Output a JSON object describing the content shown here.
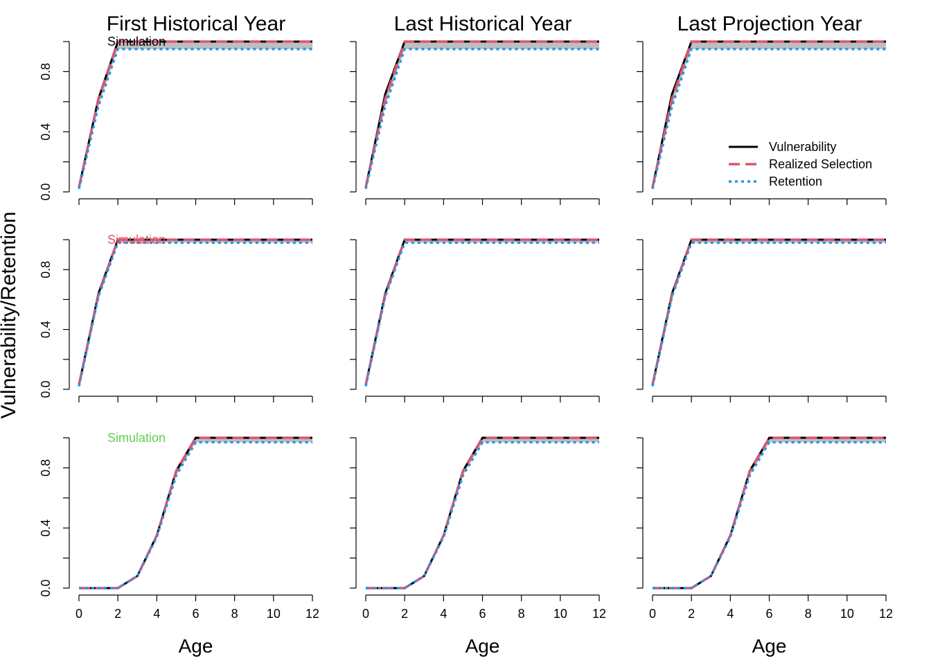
{
  "figure": {
    "ylabel": "Vulnerability/Retention",
    "xlabel": "Age",
    "column_titles": [
      "First Historical Year",
      "Last Historical Year",
      "Last Projection Year"
    ],
    "row_labels": [
      "Simulation",
      "Simulation",
      "Simulation"
    ],
    "row_label_colors": [
      "#000000",
      "#DF536B",
      "#61D04F"
    ],
    "series_colors": {
      "vulnerability": "#000000",
      "realized_selection": "#DF536B",
      "retention": "#2297E6",
      "band": "#BEBEBE"
    },
    "legend": {
      "entries": [
        "Vulnerability",
        "Realized Selection",
        "Retention"
      ],
      "placement": "right"
    }
  },
  "chart_data": [
    {
      "type": "line",
      "row": 1,
      "col": 1,
      "title": "First Historical Year",
      "label": "Simulation",
      "xlabel": "",
      "ylabel": "",
      "xlim": [
        0,
        12
      ],
      "ylim": [
        0,
        1
      ],
      "x_ticks": [],
      "y_ticks": [
        "0.0",
        "0.4",
        "0.8"
      ],
      "x": [
        0,
        1,
        2,
        3,
        4,
        5,
        6,
        7,
        8,
        9,
        10,
        11,
        12
      ],
      "series": [
        {
          "name": "Vulnerability",
          "values": [
            0.03,
            0.62,
            1.0,
            1.0,
            1.0,
            1.0,
            1.0,
            1.0,
            1.0,
            1.0,
            1.0,
            1.0,
            1.0
          ]
        },
        {
          "name": "Realized Selection",
          "values": [
            0.03,
            0.62,
            1.0,
            1.0,
            1.0,
            1.0,
            1.0,
            1.0,
            1.0,
            1.0,
            1.0,
            1.0,
            1.0
          ]
        },
        {
          "name": "Retention",
          "values": [
            0.02,
            0.57,
            0.95,
            0.95,
            0.95,
            0.95,
            0.95,
            0.95,
            0.95,
            0.95,
            0.95,
            0.95,
            0.95
          ]
        }
      ]
    },
    {
      "type": "line",
      "row": 1,
      "col": 2,
      "title": "Last Historical Year",
      "label": "",
      "xlabel": "",
      "ylabel": "",
      "xlim": [
        0,
        12
      ],
      "ylim": [
        0,
        1
      ],
      "x_ticks": [],
      "y_ticks": [],
      "x": [
        0,
        1,
        2,
        3,
        4,
        5,
        6,
        7,
        8,
        9,
        10,
        11,
        12
      ],
      "series": [
        {
          "name": "Vulnerability",
          "values": [
            0.03,
            0.65,
            1.0,
            1.0,
            1.0,
            1.0,
            1.0,
            1.0,
            1.0,
            1.0,
            1.0,
            1.0,
            1.0
          ]
        },
        {
          "name": "Realized Selection",
          "values": [
            0.03,
            0.62,
            1.0,
            1.0,
            1.0,
            1.0,
            1.0,
            1.0,
            1.0,
            1.0,
            1.0,
            1.0,
            1.0
          ]
        },
        {
          "name": "Retention",
          "values": [
            0.02,
            0.57,
            0.95,
            0.95,
            0.95,
            0.95,
            0.95,
            0.95,
            0.95,
            0.95,
            0.95,
            0.95,
            0.95
          ]
        }
      ]
    },
    {
      "type": "line",
      "row": 1,
      "col": 3,
      "title": "Last Projection Year",
      "label": "",
      "xlabel": "",
      "ylabel": "",
      "xlim": [
        0,
        12
      ],
      "ylim": [
        0,
        1
      ],
      "x_ticks": [],
      "y_ticks": [],
      "x": [
        0,
        1,
        2,
        3,
        4,
        5,
        6,
        7,
        8,
        9,
        10,
        11,
        12
      ],
      "series": [
        {
          "name": "Vulnerability",
          "values": [
            0.03,
            0.65,
            1.0,
            1.0,
            1.0,
            1.0,
            1.0,
            1.0,
            1.0,
            1.0,
            1.0,
            1.0,
            1.0
          ]
        },
        {
          "name": "Realized Selection",
          "values": [
            0.03,
            0.62,
            1.0,
            1.0,
            1.0,
            1.0,
            1.0,
            1.0,
            1.0,
            1.0,
            1.0,
            1.0,
            1.0
          ]
        },
        {
          "name": "Retention",
          "values": [
            0.02,
            0.57,
            0.95,
            0.95,
            0.95,
            0.95,
            0.95,
            0.95,
            0.95,
            0.95,
            0.95,
            0.95,
            0.95
          ]
        }
      ],
      "legend": [
        "Vulnerability",
        "Realized Selection",
        "Retention"
      ]
    },
    {
      "type": "line",
      "row": 2,
      "col": 1,
      "title": "",
      "label": "Simulation",
      "xlabel": "",
      "ylabel": "",
      "xlim": [
        0,
        12
      ],
      "ylim": [
        0,
        1
      ],
      "x_ticks": [],
      "y_ticks": [
        "0.0",
        "0.4",
        "0.8"
      ],
      "x": [
        0,
        1,
        2,
        3,
        4,
        5,
        6,
        7,
        8,
        9,
        10,
        11,
        12
      ],
      "series": [
        {
          "name": "Vulnerability",
          "values": [
            0.03,
            0.64,
            1.0,
            1.0,
            1.0,
            1.0,
            1.0,
            1.0,
            1.0,
            1.0,
            1.0,
            1.0,
            1.0
          ]
        },
        {
          "name": "Realized Selection",
          "values": [
            0.03,
            0.63,
            1.0,
            1.0,
            1.0,
            1.0,
            1.0,
            1.0,
            1.0,
            1.0,
            1.0,
            1.0,
            1.0
          ]
        },
        {
          "name": "Retention",
          "values": [
            0.02,
            0.62,
            0.98,
            0.98,
            0.98,
            0.98,
            0.98,
            0.98,
            0.98,
            0.98,
            0.98,
            0.98,
            0.98
          ]
        }
      ]
    },
    {
      "type": "line",
      "row": 2,
      "col": 2,
      "title": "",
      "label": "",
      "xlabel": "",
      "ylabel": "",
      "xlim": [
        0,
        12
      ],
      "ylim": [
        0,
        1
      ],
      "x_ticks": [],
      "y_ticks": [],
      "x": [
        0,
        1,
        2,
        3,
        4,
        5,
        6,
        7,
        8,
        9,
        10,
        11,
        12
      ],
      "series": [
        {
          "name": "Vulnerability",
          "values": [
            0.03,
            0.64,
            1.0,
            1.0,
            1.0,
            1.0,
            1.0,
            1.0,
            1.0,
            1.0,
            1.0,
            1.0,
            1.0
          ]
        },
        {
          "name": "Realized Selection",
          "values": [
            0.03,
            0.63,
            1.0,
            1.0,
            1.0,
            1.0,
            1.0,
            1.0,
            1.0,
            1.0,
            1.0,
            1.0,
            1.0
          ]
        },
        {
          "name": "Retention",
          "values": [
            0.02,
            0.62,
            0.98,
            0.98,
            0.98,
            0.98,
            0.98,
            0.98,
            0.98,
            0.98,
            0.98,
            0.98,
            0.98
          ]
        }
      ]
    },
    {
      "type": "line",
      "row": 2,
      "col": 3,
      "title": "",
      "label": "",
      "xlabel": "",
      "ylabel": "",
      "xlim": [
        0,
        12
      ],
      "ylim": [
        0,
        1
      ],
      "x_ticks": [],
      "y_ticks": [],
      "x": [
        0,
        1,
        2,
        3,
        4,
        5,
        6,
        7,
        8,
        9,
        10,
        11,
        12
      ],
      "series": [
        {
          "name": "Vulnerability",
          "values": [
            0.03,
            0.64,
            1.0,
            1.0,
            1.0,
            1.0,
            1.0,
            1.0,
            1.0,
            1.0,
            1.0,
            1.0,
            1.0
          ]
        },
        {
          "name": "Realized Selection",
          "values": [
            0.03,
            0.63,
            1.0,
            1.0,
            1.0,
            1.0,
            1.0,
            1.0,
            1.0,
            1.0,
            1.0,
            1.0,
            1.0
          ]
        },
        {
          "name": "Retention",
          "values": [
            0.02,
            0.62,
            0.98,
            0.98,
            0.98,
            0.98,
            0.98,
            0.98,
            0.98,
            0.98,
            0.98,
            0.98,
            0.98
          ]
        }
      ]
    },
    {
      "type": "line",
      "row": 3,
      "col": 1,
      "title": "",
      "label": "Simulation",
      "xlabel": "Age",
      "ylabel": "",
      "xlim": [
        0,
        12
      ],
      "ylim": [
        0,
        1
      ],
      "x_ticks": [
        "0",
        "2",
        "4",
        "6",
        "8",
        "10",
        "12"
      ],
      "y_ticks": [
        "0.0",
        "0.4",
        "0.8"
      ],
      "x": [
        0,
        1,
        2,
        3,
        4,
        5,
        6,
        7,
        8,
        9,
        10,
        11,
        12
      ],
      "series": [
        {
          "name": "Vulnerability",
          "values": [
            0.0,
            0.0,
            0.0,
            0.08,
            0.35,
            0.78,
            1.0,
            1.0,
            1.0,
            1.0,
            1.0,
            1.0,
            1.0
          ]
        },
        {
          "name": "Realized Selection",
          "values": [
            0.0,
            0.0,
            0.0,
            0.08,
            0.35,
            0.78,
            1.0,
            1.0,
            1.0,
            1.0,
            1.0,
            1.0,
            1.0
          ]
        },
        {
          "name": "Retention",
          "values": [
            0.0,
            0.0,
            0.0,
            0.08,
            0.34,
            0.75,
            0.97,
            0.97,
            0.97,
            0.97,
            0.97,
            0.97,
            0.97
          ]
        }
      ]
    },
    {
      "type": "line",
      "row": 3,
      "col": 2,
      "title": "",
      "label": "",
      "xlabel": "Age",
      "ylabel": "",
      "xlim": [
        0,
        12
      ],
      "ylim": [
        0,
        1
      ],
      "x_ticks": [
        "0",
        "2",
        "4",
        "6",
        "8",
        "10",
        "12"
      ],
      "y_ticks": [],
      "x": [
        0,
        1,
        2,
        3,
        4,
        5,
        6,
        7,
        8,
        9,
        10,
        11,
        12
      ],
      "series": [
        {
          "name": "Vulnerability",
          "values": [
            0.0,
            0.0,
            0.0,
            0.08,
            0.35,
            0.78,
            1.0,
            1.0,
            1.0,
            1.0,
            1.0,
            1.0,
            1.0
          ]
        },
        {
          "name": "Realized Selection",
          "values": [
            0.0,
            0.0,
            0.0,
            0.08,
            0.35,
            0.78,
            1.0,
            1.0,
            1.0,
            1.0,
            1.0,
            1.0,
            1.0
          ]
        },
        {
          "name": "Retention",
          "values": [
            0.0,
            0.0,
            0.0,
            0.08,
            0.34,
            0.75,
            0.97,
            0.97,
            0.97,
            0.97,
            0.97,
            0.97,
            0.97
          ]
        }
      ]
    },
    {
      "type": "line",
      "row": 3,
      "col": 3,
      "title": "",
      "label": "",
      "xlabel": "Age",
      "ylabel": "",
      "xlim": [
        0,
        12
      ],
      "ylim": [
        0,
        1
      ],
      "x_ticks": [
        "0",
        "2",
        "4",
        "6",
        "8",
        "10",
        "12"
      ],
      "y_ticks": [],
      "x": [
        0,
        1,
        2,
        3,
        4,
        5,
        6,
        7,
        8,
        9,
        10,
        11,
        12
      ],
      "series": [
        {
          "name": "Vulnerability",
          "values": [
            0.0,
            0.0,
            0.0,
            0.08,
            0.35,
            0.78,
            1.0,
            1.0,
            1.0,
            1.0,
            1.0,
            1.0,
            1.0
          ]
        },
        {
          "name": "Realized Selection",
          "values": [
            0.0,
            0.0,
            0.0,
            0.08,
            0.35,
            0.78,
            1.0,
            1.0,
            1.0,
            1.0,
            1.0,
            1.0,
            1.0
          ]
        },
        {
          "name": "Retention",
          "values": [
            0.0,
            0.0,
            0.0,
            0.08,
            0.34,
            0.75,
            0.97,
            0.97,
            0.97,
            0.97,
            0.97,
            0.97,
            0.97
          ]
        }
      ]
    }
  ]
}
